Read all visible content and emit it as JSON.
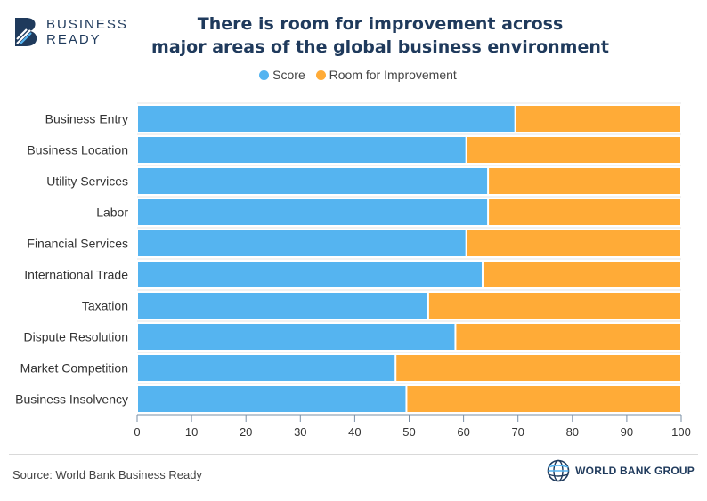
{
  "brand": {
    "line1": "BUSINESS",
    "line2": "READY"
  },
  "title": {
    "line1": "There is room for improvement across",
    "line2": "major areas of the global business environment"
  },
  "legend": [
    {
      "label": "Score",
      "color": "#55b4f0"
    },
    {
      "label": "Room for Improvement",
      "color": "#ffab37"
    }
  ],
  "chart_data": {
    "type": "bar",
    "orientation": "horizontal",
    "stacked": true,
    "categories": [
      "Business Entry",
      "Business Location",
      "Utility Services",
      "Labor",
      "Financial Services",
      "International Trade",
      "Taxation",
      "Dispute Resolution",
      "Market Competition",
      "Business Insolvency"
    ],
    "series": [
      {
        "name": "Score",
        "color": "#55b4f0",
        "values": [
          69.5,
          60.5,
          64.5,
          64.5,
          60.5,
          63.5,
          53.5,
          58.5,
          47.5,
          49.5
        ]
      },
      {
        "name": "Room for Improvement",
        "color": "#ffab37",
        "values": [
          30.5,
          39.5,
          35.5,
          35.5,
          39.5,
          36.5,
          46.5,
          41.5,
          52.5,
          50.5
        ]
      }
    ],
    "xlim": [
      0,
      100
    ],
    "xticks": [
      "0",
      "10",
      "20",
      "30",
      "40",
      "50",
      "60",
      "70",
      "80",
      "90",
      "100"
    ],
    "grid": true,
    "legend_position": "top"
  },
  "footer": {
    "source": "Source: World Bank Business Ready",
    "org": "WORLD BANK GROUP"
  }
}
